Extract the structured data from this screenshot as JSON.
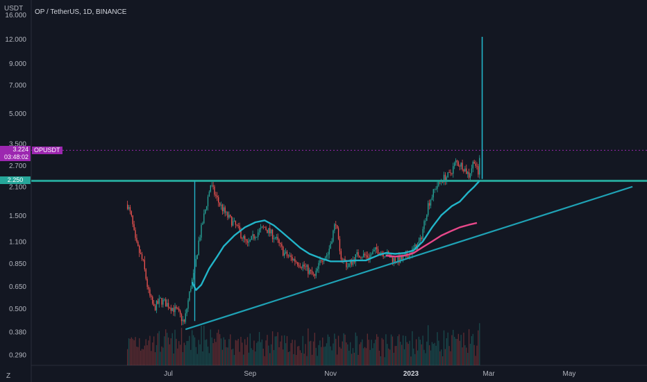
{
  "axis_unit": "USDT",
  "chart_title": "OP / TetherUS, 1D, BINANCE",
  "scale_button": "Z",
  "price_badge": {
    "price": "3.224",
    "countdown": "03:48:02",
    "symbol": "OPUSDT",
    "color": "#9c27b0"
  },
  "level_badge": {
    "price": "2.250",
    "color": "#26a69a"
  },
  "colors": {
    "background": "#131722",
    "up": "#26a69a",
    "down": "#ef5350",
    "ma_fast": "#22b5c9",
    "ma_slow": "#e8488a",
    "trend": "#1fa2b5",
    "level": "#26a69a"
  },
  "chart_data": {
    "type": "candlestick",
    "title": "OP / TetherUS, 1D, BINANCE",
    "yscale": "log",
    "ylim": [
      0.255,
      19.0
    ],
    "yticks": [
      "16.000",
      "12.000",
      "9.000",
      "7.000",
      "5.000",
      "3.500",
      "2.700",
      "2.100",
      "1.500",
      "1.100",
      "0.850",
      "0.650",
      "0.500",
      "0.380",
      "0.290"
    ],
    "xticks": [
      "Jul",
      "Sep",
      "Nov",
      "2023",
      "Mar",
      "May"
    ],
    "xtick_dates": [
      "2022-07-01",
      "2022-09-01",
      "2022-11-01",
      "2023-01-01",
      "2023-03-01",
      "2023-05-01"
    ],
    "xlim": [
      "2022-03-19",
      "2023-06-29"
    ],
    "last_price": 3.224,
    "horizontal_levels": [
      2.25
    ],
    "trendlines": [
      {
        "from": [
          "2022-07-14",
          0.39
        ],
        "to": [
          "2023-06-18",
          2.1
        ]
      }
    ],
    "series": [
      {
        "kind": "ma_fast",
        "points": [
          [
            "2022-07-19",
            0.68
          ],
          [
            "2022-07-22",
            0.62
          ],
          [
            "2022-07-26",
            0.66
          ],
          [
            "2022-08-01",
            0.8
          ],
          [
            "2022-08-07",
            0.92
          ],
          [
            "2022-08-12",
            1.04
          ],
          [
            "2022-08-20",
            1.18
          ],
          [
            "2022-08-28",
            1.3
          ],
          [
            "2022-09-05",
            1.38
          ],
          [
            "2022-09-12",
            1.41
          ],
          [
            "2022-09-19",
            1.33
          ],
          [
            "2022-09-25",
            1.23
          ],
          [
            "2022-10-02",
            1.12
          ],
          [
            "2022-10-09",
            1.02
          ],
          [
            "2022-10-16",
            0.95
          ],
          [
            "2022-10-25",
            0.9
          ],
          [
            "2022-11-01",
            0.87
          ],
          [
            "2022-11-10",
            0.87
          ],
          [
            "2022-11-20",
            0.88
          ],
          [
            "2022-11-28",
            0.88
          ],
          [
            "2022-12-08",
            0.94
          ],
          [
            "2022-12-13",
            0.96
          ],
          [
            "2022-12-20",
            0.95
          ],
          [
            "2022-12-27",
            0.96
          ],
          [
            "2023-01-03",
            0.99
          ],
          [
            "2023-01-10",
            1.1
          ],
          [
            "2023-01-17",
            1.3
          ],
          [
            "2023-01-24",
            1.5
          ],
          [
            "2023-02-01",
            1.67
          ],
          [
            "2023-02-07",
            1.76
          ],
          [
            "2023-02-13",
            1.95
          ],
          [
            "2023-02-18",
            2.1
          ],
          [
            "2023-02-22",
            2.25
          ]
        ]
      },
      {
        "kind": "ma_slow",
        "points": [
          [
            "2022-12-13",
            0.93
          ],
          [
            "2022-12-20",
            0.92
          ],
          [
            "2022-12-27",
            0.93
          ],
          [
            "2023-01-03",
            0.96
          ],
          [
            "2023-01-10",
            1.03
          ],
          [
            "2023-01-17",
            1.1
          ],
          [
            "2023-01-24",
            1.18
          ],
          [
            "2023-01-31",
            1.24
          ],
          [
            "2023-02-07",
            1.3
          ],
          [
            "2023-02-14",
            1.34
          ],
          [
            "2023-02-20",
            1.37
          ]
        ]
      },
      {
        "kind": "candles",
        "anchors": [
          [
            "2022-05-31",
            1.7
          ],
          [
            "2022-06-03",
            1.45
          ],
          [
            "2022-06-06",
            1.1
          ],
          [
            "2022-06-12",
            0.85
          ],
          [
            "2022-06-16",
            0.6
          ],
          [
            "2022-06-20",
            0.5
          ],
          [
            "2022-06-25",
            0.55
          ],
          [
            "2022-07-01",
            0.52
          ],
          [
            "2022-07-08",
            0.48
          ],
          [
            "2022-07-13",
            0.42
          ],
          [
            "2022-07-18",
            0.65
          ],
          [
            "2022-07-21",
            0.78
          ],
          [
            "2022-07-24",
            1.1
          ],
          [
            "2022-07-29",
            1.6
          ],
          [
            "2022-08-02",
            2.15
          ],
          [
            "2022-08-08",
            1.75
          ],
          [
            "2022-08-14",
            1.5
          ],
          [
            "2022-08-22",
            1.3
          ],
          [
            "2022-08-30",
            1.05
          ],
          [
            "2022-09-05",
            1.2
          ],
          [
            "2022-09-12",
            1.3
          ],
          [
            "2022-09-20",
            1.15
          ],
          [
            "2022-09-27",
            0.95
          ],
          [
            "2022-10-05",
            0.88
          ],
          [
            "2022-10-12",
            0.82
          ],
          [
            "2022-10-20",
            0.72
          ],
          [
            "2022-10-25",
            0.9
          ],
          [
            "2022-10-30",
            0.95
          ],
          [
            "2022-11-05",
            1.4
          ],
          [
            "2022-11-08",
            0.95
          ],
          [
            "2022-11-14",
            0.82
          ],
          [
            "2022-11-22",
            0.95
          ],
          [
            "2022-11-30",
            0.92
          ],
          [
            "2022-12-06",
            1.0
          ],
          [
            "2022-12-13",
            0.95
          ],
          [
            "2022-12-20",
            0.88
          ],
          [
            "2022-12-27",
            0.9
          ],
          [
            "2023-01-03",
            1.0
          ],
          [
            "2023-01-08",
            1.1
          ],
          [
            "2023-01-14",
            1.7
          ],
          [
            "2023-01-20",
            2.1
          ],
          [
            "2023-01-25",
            2.3
          ],
          [
            "2023-01-30",
            2.4
          ],
          [
            "2023-02-04",
            2.8
          ],
          [
            "2023-02-09",
            2.7
          ],
          [
            "2023-02-14",
            2.4
          ],
          [
            "2023-02-18",
            2.9
          ],
          [
            "2023-02-21",
            2.4
          ],
          [
            "2023-02-22",
            3.0
          ]
        ]
      }
    ],
    "spike": {
      "date": "2023-02-24",
      "high": 12.3
    }
  }
}
